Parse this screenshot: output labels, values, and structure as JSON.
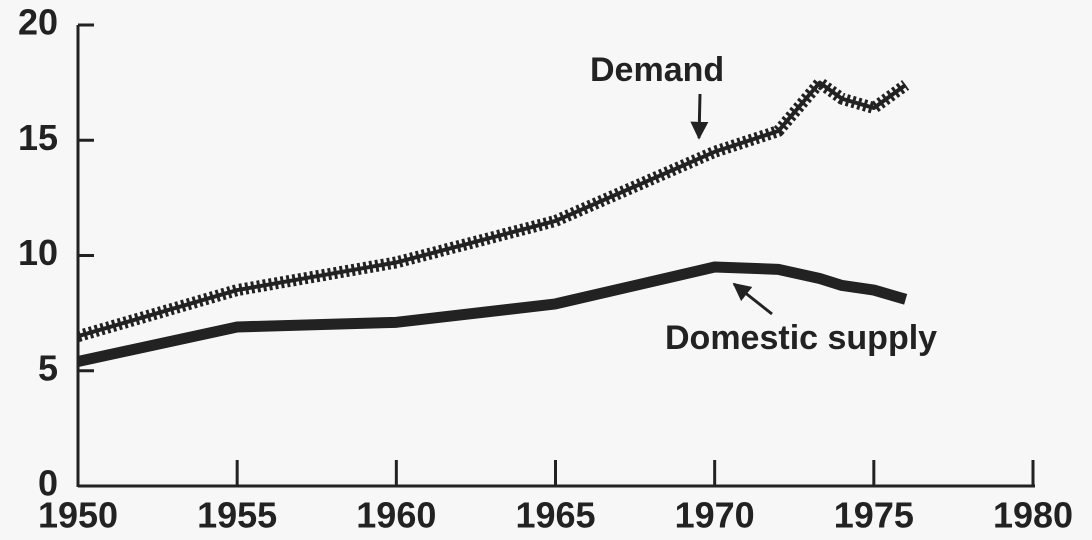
{
  "chart_data": {
    "type": "line",
    "x": [
      1950,
      1955,
      1960,
      1965,
      1970,
      1972,
      1973.3,
      1974,
      1975,
      1976
    ],
    "series": [
      {
        "name": "Demand",
        "color": "#222222",
        "values": [
          6.5,
          8.5,
          9.7,
          11.5,
          14.5,
          15.4,
          17.5,
          16.8,
          16.4,
          17.4
        ]
      },
      {
        "name": "Domestic supply",
        "color": "#222222",
        "values": [
          5.4,
          6.9,
          7.1,
          7.9,
          9.5,
          9.4,
          9.0,
          8.7,
          8.5,
          8.1
        ]
      }
    ],
    "xlim": [
      1950,
      1980
    ],
    "xticks": [
      1950,
      1955,
      1960,
      1965,
      1970,
      1975,
      1980
    ],
    "ylim": [
      0,
      20
    ],
    "yticks": [
      0,
      5,
      10,
      15,
      20
    ]
  }
}
